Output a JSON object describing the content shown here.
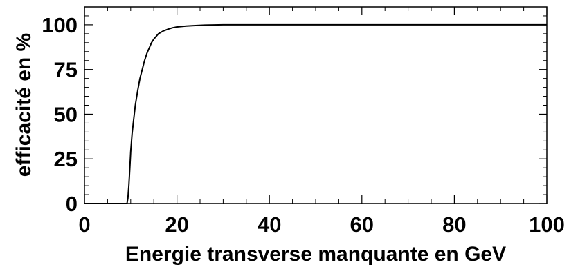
{
  "chart_data": {
    "type": "line",
    "title": "",
    "xlabel": "Energie transverse manquante en GeV",
    "ylabel": "efficacité en %",
    "xlim": [
      0,
      100
    ],
    "ylim": [
      0,
      110
    ],
    "x_ticks": [
      0,
      20,
      40,
      60,
      80,
      100
    ],
    "y_ticks": [
      0,
      25,
      50,
      75,
      100
    ],
    "x_tick_labels": [
      "0",
      "20",
      "40",
      "60",
      "80",
      "100"
    ],
    "y_tick_labels": [
      "0",
      "25",
      "50",
      "75",
      "100"
    ],
    "grid": false,
    "legend": "none",
    "line_color": "#000000",
    "series": [
      {
        "x": [
          0,
          9.2,
          9.4,
          9.6,
          9.8,
          10.0,
          10.3,
          10.6,
          11.0,
          11.5,
          12.0,
          12.5,
          13.0,
          13.5,
          14.0,
          14.5,
          15.0,
          15.5,
          16.0,
          17.0,
          18.0,
          19.0,
          20.0,
          22.0,
          24.0,
          26.0,
          28.0,
          30.0,
          35.0,
          40.0,
          50.0,
          60.0,
          70.0,
          80.0,
          90.0,
          100.0
        ],
        "y": [
          0,
          0,
          3,
          10,
          19,
          29,
          39,
          46,
          55,
          63,
          70,
          75,
          80,
          84,
          87,
          90,
          92,
          93.5,
          95,
          96.5,
          97.5,
          98.3,
          98.8,
          99.3,
          99.6,
          99.8,
          99.9,
          100,
          100,
          100,
          100,
          100,
          100,
          100,
          100,
          100
        ]
      }
    ]
  }
}
